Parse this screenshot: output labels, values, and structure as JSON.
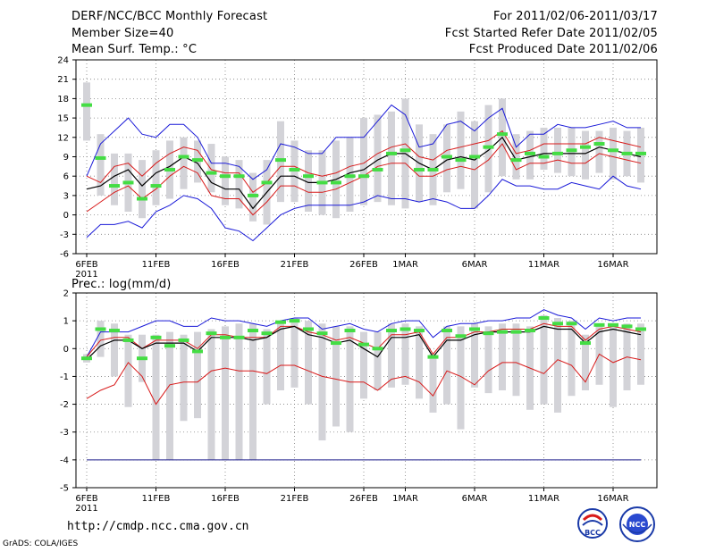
{
  "header": {
    "title": "DERF/NCC/BCC Monthly Forecast",
    "member_size": "Member Size=40",
    "variable": "Mean Surf. Temp.: °C",
    "forecast_range": "For 2011/02/06-2011/03/17",
    "fcst_started": "Fcst Started Refer Date 2011/02/05",
    "fcst_produced": "Fcst Produced Date 2011/02/06"
  },
  "footer": {
    "url": "http://cmdp.ncc.cma.gov.cn",
    "credit": "GrADS: COLA/IGES",
    "logo_bcc": "BCC",
    "logo_ncc": "NCC"
  },
  "colors": {
    "box": "#d3d3d8",
    "median": "#44dd44",
    "envelope": "#1a1ad8",
    "quartile": "#d81a1a",
    "mean": "#000000",
    "grid": "#808080"
  },
  "chart_data": [
    {
      "type": "boxplot",
      "title": "Mean Surf. Temp.: °C",
      "ylim": [
        -6,
        24
      ],
      "yticks": [
        -6,
        -3,
        0,
        3,
        6,
        9,
        12,
        15,
        18,
        21,
        24
      ],
      "xlim": [
        0,
        40
      ],
      "xticks": [
        {
          "x": 0,
          "label": "6FEB",
          "sub": "2011"
        },
        {
          "x": 5,
          "label": "11FEB"
        },
        {
          "x": 10,
          "label": "16FEB"
        },
        {
          "x": 15,
          "label": "21FEB"
        },
        {
          "x": 20,
          "label": "26FEB"
        },
        {
          "x": 23,
          "label": "1MAR"
        },
        {
          "x": 28,
          "label": "6MAR"
        },
        {
          "x": 33,
          "label": "11MAR"
        },
        {
          "x": 38,
          "label": "16MAR"
        }
      ],
      "series": {
        "box_low": [
          11.5,
          3.0,
          1.5,
          0.5,
          -0.5,
          1.5,
          2.5,
          4.0,
          5.0,
          3.5,
          1.5,
          1.0,
          -1.0,
          -1.5,
          2.0,
          2.0,
          0.5,
          0.0,
          -0.5,
          0.5,
          1.5,
          2.0,
          1.5,
          1.0,
          2.0,
          1.5,
          3.5,
          4.0,
          1.0,
          3.5,
          6.0,
          5.5,
          5.5,
          7.0,
          6.5,
          6.0,
          5.5,
          6.5,
          5.5,
          6.0,
          5.0
        ],
        "box_high": [
          20.5,
          12.5,
          9.5,
          9.5,
          8.5,
          10.0,
          11.5,
          12.0,
          11.5,
          11.0,
          9.0,
          8.5,
          6.5,
          8.5,
          14.5,
          11.5,
          10.0,
          10.0,
          11.5,
          12.0,
          15.0,
          15.5,
          16.0,
          18.0,
          14.0,
          12.5,
          14.0,
          16.0,
          14.5,
          17.0,
          18.0,
          12.5,
          13.0,
          13.5,
          13.5,
          13.5,
          13.0,
          13.0,
          13.5,
          13.0,
          13.5
        ],
        "median": [
          17.0,
          8.8,
          4.5,
          5.0,
          2.5,
          4.5,
          7.0,
          9.0,
          8.5,
          6.5,
          6.0,
          6.0,
          3.0,
          5.0,
          8.5,
          7.0,
          6.0,
          5.0,
          5.0,
          6.0,
          6.0,
          7.0,
          9.5,
          10.0,
          7.0,
          7.0,
          9.0,
          8.5,
          9.0,
          10.5,
          12.5,
          8.5,
          9.5,
          9.0,
          9.5,
          10.0,
          10.5,
          11.0,
          10.0,
          9.5,
          9.5
        ],
        "envelope_max": [
          6.0,
          11.0,
          13.0,
          15.0,
          12.5,
          12.0,
          14.0,
          14.0,
          12.0,
          8.0,
          8.0,
          7.5,
          5.5,
          7.0,
          11.0,
          10.5,
          9.5,
          9.5,
          12.0,
          12.0,
          12.0,
          14.5,
          17.0,
          15.5,
          10.5,
          11.0,
          14.0,
          14.5,
          13.0,
          15.0,
          16.5,
          10.5,
          12.5,
          12.5,
          14.0,
          13.5,
          13.5,
          14.0,
          14.5,
          13.5,
          13.5
        ],
        "q75": [
          6.0,
          5.0,
          7.5,
          8.0,
          6.0,
          8.0,
          9.5,
          10.5,
          10.0,
          7.0,
          6.5,
          6.5,
          3.5,
          5.0,
          7.5,
          7.5,
          6.5,
          6.0,
          6.5,
          7.5,
          8.0,
          9.5,
          10.5,
          11.0,
          9.0,
          8.5,
          10.0,
          10.5,
          11.0,
          11.5,
          13.0,
          9.5,
          10.0,
          11.0,
          11.0,
          11.0,
          11.0,
          12.0,
          11.5,
          11.0,
          10.5
        ],
        "mean": [
          4.0,
          4.5,
          6.0,
          7.0,
          4.5,
          6.5,
          7.5,
          9.0,
          8.0,
          5.0,
          4.0,
          4.0,
          1.0,
          3.5,
          6.0,
          6.0,
          5.0,
          5.0,
          5.5,
          6.5,
          7.0,
          8.5,
          9.5,
          9.5,
          8.0,
          7.0,
          8.5,
          9.0,
          8.5,
          10.0,
          12.0,
          8.5,
          9.0,
          9.5,
          9.5,
          9.5,
          9.5,
          10.5,
          10.0,
          9.5,
          9.0
        ],
        "q25": [
          0.5,
          2.0,
          3.5,
          4.5,
          2.5,
          4.0,
          6.0,
          7.5,
          6.5,
          3.0,
          2.5,
          2.5,
          0.0,
          2.0,
          4.5,
          4.5,
          3.5,
          3.5,
          4.0,
          5.0,
          6.0,
          7.5,
          8.0,
          8.0,
          6.0,
          6.0,
          7.0,
          7.5,
          7.0,
          8.5,
          11.0,
          7.0,
          8.0,
          8.0,
          8.5,
          8.0,
          8.0,
          9.5,
          9.0,
          8.5,
          8.0
        ],
        "envelope_min": [
          -3.5,
          -1.5,
          -1.5,
          -1.0,
          -2.0,
          0.5,
          1.5,
          3.0,
          2.5,
          1.0,
          -2.0,
          -2.5,
          -4.0,
          -2.0,
          0.0,
          1.0,
          1.5,
          1.5,
          1.5,
          1.5,
          2.0,
          3.0,
          2.5,
          2.5,
          2.0,
          2.5,
          2.0,
          1.0,
          1.0,
          3.0,
          5.5,
          4.5,
          4.5,
          4.0,
          4.0,
          5.0,
          4.5,
          4.0,
          6.0,
          4.5,
          4.0
        ]
      }
    },
    {
      "type": "boxplot",
      "title": "Prec.: log(mm/d)",
      "ylim": [
        -5,
        2
      ],
      "yticks": [
        -5,
        -4,
        -3,
        -2,
        -1,
        0,
        1,
        2
      ],
      "xlim": [
        0,
        40
      ],
      "xticks": [
        {
          "x": 0,
          "label": "6FEB",
          "sub": "2011"
        },
        {
          "x": 5,
          "label": "11FEB"
        },
        {
          "x": 10,
          "label": "16FEB"
        },
        {
          "x": 15,
          "label": "21FEB"
        },
        {
          "x": 20,
          "label": "26FEB"
        },
        {
          "x": 23,
          "label": "1MAR"
        },
        {
          "x": 28,
          "label": "6MAR"
        },
        {
          "x": 33,
          "label": "11MAR"
        },
        {
          "x": 38,
          "label": "16MAR"
        }
      ],
      "floor_line": -4,
      "series": {
        "box_low": [
          -0.5,
          -0.3,
          -1.0,
          -2.1,
          -1.2,
          -4.0,
          -4.0,
          -2.6,
          -2.5,
          -4.0,
          -4.0,
          -4.0,
          -4.0,
          -2.0,
          -1.5,
          -1.4,
          -2.0,
          -3.3,
          -2.8,
          -3.0,
          -1.8,
          -1.5,
          -1.4,
          -1.3,
          -1.8,
          -2.3,
          -2.0,
          -2.9,
          -1.4,
          -1.6,
          -1.5,
          -1.7,
          -2.2,
          -2.0,
          -2.3,
          -1.7,
          -1.5,
          -1.3,
          -2.1,
          -1.5,
          -1.3
        ],
        "box_high": [
          -0.2,
          1.0,
          0.9,
          0.5,
          0.5,
          0.5,
          0.6,
          0.5,
          0.6,
          0.7,
          0.8,
          0.9,
          0.9,
          0.7,
          1.0,
          1.1,
          1.0,
          0.9,
          0.8,
          0.8,
          0.6,
          0.6,
          0.9,
          0.9,
          0.8,
          -0.2,
          0.8,
          0.8,
          0.9,
          0.8,
          0.9,
          0.9,
          0.8,
          1.2,
          1.1,
          1.0,
          0.5,
          0.9,
          0.9,
          0.9,
          0.9
        ],
        "median": [
          -0.35,
          0.7,
          0.65,
          0.3,
          -0.35,
          0.4,
          0.1,
          0.3,
          -0.1,
          0.55,
          0.4,
          0.4,
          0.65,
          0.55,
          0.95,
          1.0,
          0.7,
          0.55,
          0.2,
          0.65,
          0.15,
          0.0,
          0.65,
          0.7,
          0.65,
          -0.3,
          0.65,
          0.45,
          0.7,
          0.55,
          0.6,
          0.6,
          0.65,
          1.1,
          0.9,
          0.9,
          0.2,
          0.85,
          0.85,
          0.8,
          0.7
        ],
        "envelope_max": [
          -0.3,
          0.6,
          0.6,
          0.6,
          0.8,
          1.0,
          1.0,
          0.8,
          0.8,
          1.1,
          1.0,
          1.0,
          0.9,
          0.8,
          1.0,
          1.1,
          1.1,
          0.7,
          0.8,
          0.9,
          0.7,
          0.6,
          0.9,
          1.0,
          1.0,
          0.4,
          0.8,
          0.9,
          0.9,
          1.0,
          1.0,
          1.1,
          1.1,
          1.4,
          1.2,
          1.1,
          0.7,
          1.1,
          1.0,
          1.1,
          1.1
        ],
        "q75": [
          -0.3,
          0.3,
          0.4,
          0.4,
          0.0,
          0.3,
          0.3,
          0.3,
          0.0,
          0.5,
          0.5,
          0.4,
          0.4,
          0.4,
          0.8,
          0.8,
          0.6,
          0.5,
          0.3,
          0.4,
          0.2,
          0.0,
          0.5,
          0.5,
          0.6,
          -0.2,
          0.4,
          0.4,
          0.6,
          0.6,
          0.7,
          0.7,
          0.7,
          0.9,
          0.8,
          0.8,
          0.3,
          0.7,
          0.8,
          0.7,
          0.6
        ],
        "mean": [
          -0.4,
          0.1,
          0.3,
          0.3,
          0.0,
          0.2,
          0.2,
          0.2,
          -0.1,
          0.4,
          0.4,
          0.4,
          0.3,
          0.4,
          0.7,
          0.8,
          0.5,
          0.4,
          0.2,
          0.3,
          0.0,
          -0.3,
          0.4,
          0.4,
          0.5,
          -0.3,
          0.3,
          0.3,
          0.5,
          0.6,
          0.6,
          0.6,
          0.6,
          0.8,
          0.7,
          0.7,
          0.2,
          0.6,
          0.7,
          0.6,
          0.5
        ],
        "q25": [
          -1.8,
          -1.5,
          -1.3,
          -0.5,
          -1.0,
          -2.0,
          -1.3,
          -1.2,
          -1.2,
          -0.8,
          -0.7,
          -0.8,
          -0.8,
          -0.9,
          -0.6,
          -0.6,
          -0.8,
          -1.0,
          -1.1,
          -1.2,
          -1.2,
          -1.5,
          -1.1,
          -1.0,
          -1.2,
          -1.7,
          -0.8,
          -1.0,
          -1.3,
          -0.8,
          -0.5,
          -0.5,
          -0.7,
          -0.9,
          -0.4,
          -0.6,
          -1.2,
          -0.2,
          -0.5,
          -0.3,
          -0.4
        ],
        "envelope_min": [
          -4.0,
          -4.0,
          -4.0,
          -4.0,
          -4.0,
          -4.0,
          -4.0,
          -4.0,
          -4.0,
          -4.0,
          -4.0,
          -4.0,
          -4.0,
          -4.0,
          -4.0,
          -4.0,
          -4.0,
          -4.0,
          -4.0,
          -4.0,
          -4.0,
          -4.0,
          -4.0,
          -4.0,
          -4.0,
          -4.0,
          -4.0,
          -4.0,
          -4.0,
          -4.0,
          -4.0,
          -4.0,
          -4.0,
          -4.0,
          -4.0,
          -4.0,
          -4.0,
          -4.0,
          -4.0,
          -4.0,
          -4.0
        ]
      }
    }
  ]
}
